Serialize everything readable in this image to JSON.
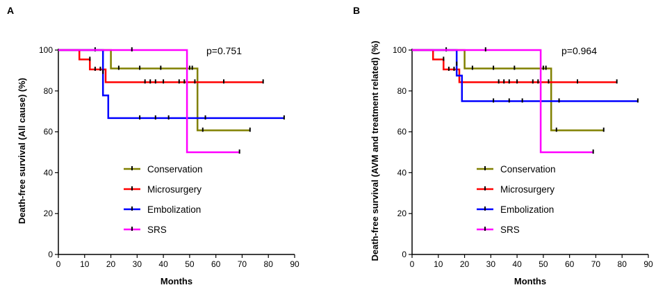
{
  "chart_data": [
    {
      "type": "line",
      "subtype": "kaplan-meier-step",
      "panel_label": "A",
      "ylabel": "Death-free survival (All cause) (%)",
      "xlabel": "Months",
      "pvalue": "p=0.751",
      "xlim": [
        0,
        90
      ],
      "ylim": [
        0,
        100
      ],
      "xticks": [
        "0",
        "10",
        "20",
        "30",
        "40",
        "50",
        "60",
        "70",
        "80",
        "90"
      ],
      "yticks": [
        "0",
        "20",
        "40",
        "60",
        "80",
        "100"
      ],
      "legend": [
        "Conservation",
        "Microsurgery",
        "Embolization",
        "SRS"
      ],
      "series": [
        {
          "name": "Conservation",
          "color": "#808000",
          "steps": [
            [
              0,
              100
            ],
            [
              20,
              100
            ],
            [
              20,
              91
            ],
            [
              53,
              91
            ],
            [
              53,
              60.7
            ],
            [
              73,
              60.7
            ]
          ],
          "censors": [
            [
              14,
              100
            ],
            [
              23,
              91
            ],
            [
              31,
              91
            ],
            [
              39,
              91
            ],
            [
              50,
              91
            ],
            [
              51,
              91
            ],
            [
              55,
              60.7
            ],
            [
              73,
              60.7
            ]
          ]
        },
        {
          "name": "Microsurgery",
          "color": "#ff0000",
          "steps": [
            [
              0,
              100
            ],
            [
              8,
              100
            ],
            [
              8,
              95.4
            ],
            [
              12,
              95.4
            ],
            [
              12,
              90.5
            ],
            [
              18,
              90.5
            ],
            [
              18,
              84.3
            ],
            [
              78,
              84.3
            ]
          ],
          "censors": [
            [
              12,
              95.4
            ],
            [
              14,
              90.5
            ],
            [
              16,
              90.5
            ],
            [
              33,
              84.3
            ],
            [
              35,
              84.3
            ],
            [
              37,
              84.3
            ],
            [
              40,
              84.3
            ],
            [
              46,
              84.3
            ],
            [
              48,
              84.3
            ],
            [
              52,
              84.3
            ],
            [
              63,
              84.3
            ],
            [
              78,
              84.3
            ]
          ]
        },
        {
          "name": "Embolization",
          "color": "#0000ff",
          "steps": [
            [
              0,
              100
            ],
            [
              17,
              100
            ],
            [
              17,
              77.8
            ],
            [
              19,
              77.8
            ],
            [
              19,
              66.7
            ],
            [
              86,
              66.7
            ]
          ],
          "censors": [
            [
              17,
              89
            ],
            [
              31,
              66.7
            ],
            [
              37,
              66.7
            ],
            [
              42,
              66.7
            ],
            [
              56,
              66.7
            ],
            [
              86,
              66.7
            ]
          ]
        },
        {
          "name": "SRS",
          "color": "#ff00ff",
          "steps": [
            [
              0,
              100
            ],
            [
              49,
              100
            ],
            [
              49,
              50
            ],
            [
              69,
              50
            ]
          ],
          "censors": [
            [
              28,
              100
            ],
            [
              69,
              50
            ]
          ]
        }
      ]
    },
    {
      "type": "line",
      "subtype": "kaplan-meier-step",
      "panel_label": "B",
      "ylabel": "Death-free survival (AVM and treatment related) (%)",
      "xlabel": "Months",
      "pvalue": "p=0.964",
      "xlim": [
        0,
        90
      ],
      "ylim": [
        0,
        100
      ],
      "xticks": [
        "0",
        "10",
        "20",
        "30",
        "40",
        "50",
        "60",
        "70",
        "80",
        "90"
      ],
      "yticks": [
        "0",
        "20",
        "40",
        "60",
        "80",
        "100"
      ],
      "legend": [
        "Conservation",
        "Microsurgery",
        "Embolization",
        "SRS"
      ],
      "series": [
        {
          "name": "Conservation",
          "color": "#808000",
          "steps": [
            [
              0,
              100
            ],
            [
              20,
              100
            ],
            [
              20,
              91
            ],
            [
              53,
              91
            ],
            [
              53,
              60.7
            ],
            [
              73,
              60.7
            ]
          ],
          "censors": [
            [
              13,
              100
            ],
            [
              23,
              91
            ],
            [
              31,
              91
            ],
            [
              39,
              91
            ],
            [
              50,
              91
            ],
            [
              51,
              91
            ],
            [
              55,
              60.7
            ],
            [
              73,
              60.7
            ]
          ]
        },
        {
          "name": "Microsurgery",
          "color": "#ff0000",
          "steps": [
            [
              0,
              100
            ],
            [
              8,
              100
            ],
            [
              8,
              95.4
            ],
            [
              12,
              95.4
            ],
            [
              12,
              90.5
            ],
            [
              18,
              90.5
            ],
            [
              18,
              84.3
            ],
            [
              78,
              84.3
            ]
          ],
          "censors": [
            [
              12,
              95.4
            ],
            [
              14,
              90.5
            ],
            [
              16,
              90.5
            ],
            [
              33,
              84.3
            ],
            [
              35,
              84.3
            ],
            [
              37,
              84.3
            ],
            [
              40,
              84.3
            ],
            [
              46,
              84.3
            ],
            [
              48,
              84.3
            ],
            [
              52,
              84.3
            ],
            [
              63,
              84.3
            ],
            [
              78,
              84.3
            ]
          ]
        },
        {
          "name": "Embolization",
          "color": "#0000ff",
          "steps": [
            [
              0,
              100
            ],
            [
              17,
              100
            ],
            [
              17,
              87.5
            ],
            [
              19,
              87.5
            ],
            [
              19,
              75
            ],
            [
              86,
              75
            ]
          ],
          "censors": [
            [
              17,
              93
            ],
            [
              31,
              75
            ],
            [
              37,
              75
            ],
            [
              42,
              75
            ],
            [
              56,
              75
            ],
            [
              86,
              75
            ]
          ]
        },
        {
          "name": "SRS",
          "color": "#ff00ff",
          "steps": [
            [
              0,
              100
            ],
            [
              49,
              100
            ],
            [
              49,
              50
            ],
            [
              69,
              50
            ]
          ],
          "censors": [
            [
              28,
              100
            ],
            [
              69,
              50
            ]
          ]
        }
      ]
    }
  ]
}
